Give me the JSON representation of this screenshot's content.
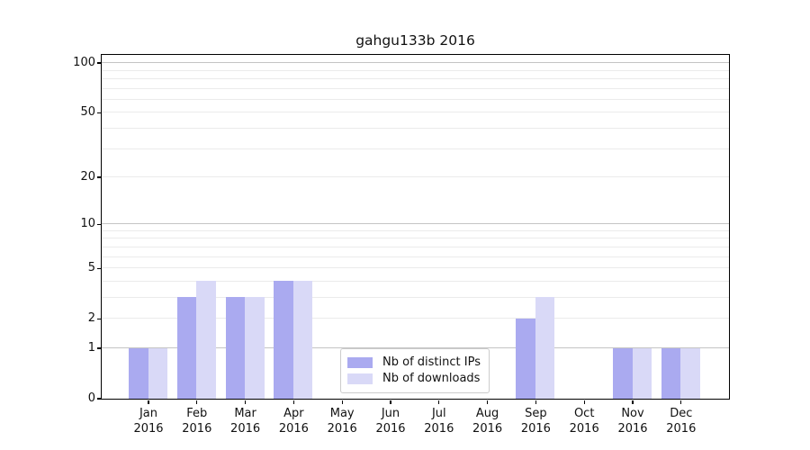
{
  "chart_data": {
    "type": "bar",
    "title": "gahgu133b 2016",
    "categories": [
      {
        "month": "Jan",
        "year": "2016"
      },
      {
        "month": "Feb",
        "year": "2016"
      },
      {
        "month": "Mar",
        "year": "2016"
      },
      {
        "month": "Apr",
        "year": "2016"
      },
      {
        "month": "May",
        "year": "2016"
      },
      {
        "month": "Jun",
        "year": "2016"
      },
      {
        "month": "Jul",
        "year": "2016"
      },
      {
        "month": "Aug",
        "year": "2016"
      },
      {
        "month": "Sep",
        "year": "2016"
      },
      {
        "month": "Oct",
        "year": "2016"
      },
      {
        "month": "Nov",
        "year": "2016"
      },
      {
        "month": "Dec",
        "year": "2016"
      }
    ],
    "series": [
      {
        "name": "Nb of distinct IPs",
        "color": "#aaaaf0",
        "values": [
          1,
          3,
          3,
          4,
          0,
          0,
          0,
          0,
          2,
          0,
          1,
          1
        ]
      },
      {
        "name": "Nb of downloads",
        "color": "#d9d9f7",
        "values": [
          1,
          4,
          3,
          4,
          0,
          0,
          0,
          0,
          3,
          0,
          1,
          1
        ]
      }
    ],
    "yscale": "log1p",
    "ylim": [
      0,
      112
    ],
    "yticks": [
      {
        "value": 0,
        "label": "0"
      },
      {
        "value": 1,
        "label": "1"
      },
      {
        "value": 2,
        "label": "2"
      },
      {
        "value": 5,
        "label": "5"
      },
      {
        "value": 10,
        "label": "10"
      },
      {
        "value": 20,
        "label": "20"
      },
      {
        "value": 50,
        "label": "50"
      },
      {
        "value": 100,
        "label": "100"
      }
    ],
    "grid_major": [
      1,
      10,
      100
    ],
    "grid_minor": [
      2,
      3,
      4,
      5,
      6,
      7,
      8,
      9,
      20,
      30,
      40,
      50,
      60,
      70,
      80,
      90
    ],
    "grid": true,
    "legend_position": "lower center",
    "xlabel": "",
    "ylabel": ""
  },
  "colors": {
    "bar_distinct_ips": "#aaaaf0",
    "bar_downloads": "#d9d9f7",
    "grid_major": "#c4c4c4",
    "grid_minor": "#ebebeb",
    "axis": "#000000",
    "legend_border": "#cccccc",
    "background": "#ffffff"
  }
}
